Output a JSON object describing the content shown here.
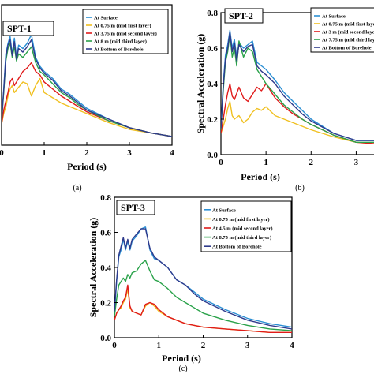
{
  "chart_data": [
    {
      "panel": "(a)",
      "type": "line",
      "title": "SPT-1",
      "xlabel": "Period (s)",
      "ylabel": "",
      "xlim": [
        0,
        4
      ],
      "ylim": [
        0,
        0.8
      ],
      "xticks": [
        "0",
        "1",
        "2",
        "3",
        "4"
      ],
      "yticks": [],
      "legend_position": "top-right",
      "series": [
        {
          "name": "At Surface",
          "color": "#2b8fd4",
          "x": [
            0,
            0.05,
            0.1,
            0.15,
            0.2,
            0.25,
            0.3,
            0.35,
            0.4,
            0.5,
            0.6,
            0.7,
            0.8,
            0.9,
            1,
            1.2,
            1.4,
            1.6,
            1.8,
            2,
            2.5,
            3,
            3.5,
            4
          ],
          "y": [
            0.14,
            0.32,
            0.52,
            0.58,
            0.62,
            0.52,
            0.61,
            0.5,
            0.57,
            0.55,
            0.58,
            0.63,
            0.5,
            0.45,
            0.42,
            0.38,
            0.32,
            0.29,
            0.25,
            0.21,
            0.15,
            0.1,
            0.07,
            0.05
          ]
        },
        {
          "name": "At 0.75 m (mid first layer)",
          "color": "#f0c020",
          "x": [
            0,
            0.05,
            0.1,
            0.15,
            0.2,
            0.25,
            0.3,
            0.4,
            0.5,
            0.6,
            0.7,
            0.8,
            0.9,
            1,
            1.2,
            1.4,
            1.6,
            1.8,
            2,
            2.5,
            3,
            3.5,
            4
          ],
          "y": [
            0.12,
            0.18,
            0.22,
            0.28,
            0.32,
            0.34,
            0.3,
            0.33,
            0.36,
            0.35,
            0.28,
            0.34,
            0.38,
            0.3,
            0.27,
            0.24,
            0.22,
            0.2,
            0.18,
            0.13,
            0.09,
            0.07,
            0.05
          ]
        },
        {
          "name": "At 3.75 m (mid second layer)",
          "color": "#e01b1b",
          "x": [
            0,
            0.05,
            0.1,
            0.15,
            0.2,
            0.25,
            0.3,
            0.4,
            0.5,
            0.6,
            0.7,
            0.8,
            0.9,
            1,
            1.2,
            1.4,
            1.6,
            1.8,
            2,
            2.5,
            3,
            3.5,
            4
          ],
          "y": [
            0.12,
            0.2,
            0.25,
            0.3,
            0.36,
            0.38,
            0.34,
            0.38,
            0.42,
            0.44,
            0.47,
            0.42,
            0.4,
            0.36,
            0.32,
            0.28,
            0.25,
            0.22,
            0.19,
            0.14,
            0.1,
            0.07,
            0.05
          ]
        },
        {
          "name": "At 8 m (mid third layer)",
          "color": "#2aa24a",
          "x": [
            0,
            0.05,
            0.1,
            0.15,
            0.2,
            0.25,
            0.3,
            0.35,
            0.4,
            0.5,
            0.6,
            0.7,
            0.8,
            0.9,
            1,
            1.2,
            1.4,
            1.6,
            1.8,
            2,
            2.5,
            3,
            3.5,
            4
          ],
          "y": [
            0.13,
            0.3,
            0.48,
            0.55,
            0.58,
            0.5,
            0.56,
            0.48,
            0.52,
            0.5,
            0.53,
            0.56,
            0.47,
            0.42,
            0.4,
            0.35,
            0.3,
            0.27,
            0.23,
            0.2,
            0.14,
            0.1,
            0.07,
            0.05
          ]
        },
        {
          "name": "At Bottom of Borehole",
          "color": "#2e3a8c",
          "x": [
            0,
            0.05,
            0.1,
            0.15,
            0.2,
            0.25,
            0.3,
            0.35,
            0.4,
            0.5,
            0.6,
            0.7,
            0.8,
            0.9,
            1,
            1.2,
            1.4,
            1.6,
            1.8,
            2,
            2.5,
            3,
            3.5,
            4
          ],
          "y": [
            0.14,
            0.31,
            0.5,
            0.57,
            0.6,
            0.51,
            0.59,
            0.49,
            0.55,
            0.53,
            0.56,
            0.6,
            0.49,
            0.44,
            0.41,
            0.37,
            0.31,
            0.28,
            0.24,
            0.2,
            0.15,
            0.1,
            0.07,
            0.05
          ]
        }
      ]
    },
    {
      "panel": "(b)",
      "type": "line",
      "title": "SPT-2",
      "xlabel": "Period (s)",
      "ylabel": "Spectral Acceleration (g)",
      "xlim": [
        0,
        3.5
      ],
      "ylim": [
        0,
        0.8
      ],
      "xticks": [
        "0",
        "1",
        "2",
        "3"
      ],
      "yticks": [
        "0.0",
        "0.2",
        "0.4",
        "0.6",
        "0.8"
      ],
      "legend_position": "top-right",
      "series": [
        {
          "name": "At Surface",
          "color": "#2b8fd4",
          "x": [
            0,
            0.05,
            0.1,
            0.15,
            0.2,
            0.25,
            0.3,
            0.35,
            0.4,
            0.5,
            0.6,
            0.7,
            0.8,
            0.9,
            1,
            1.2,
            1.4,
            1.6,
            1.8,
            2,
            2.5,
            3,
            3.5
          ],
          "y": [
            0.15,
            0.4,
            0.56,
            0.62,
            0.7,
            0.6,
            0.65,
            0.55,
            0.63,
            0.6,
            0.62,
            0.64,
            0.52,
            0.5,
            0.48,
            0.42,
            0.35,
            0.3,
            0.25,
            0.2,
            0.12,
            0.08,
            0.08
          ]
        },
        {
          "name": "At 0.75 m (mid first layer)",
          "color": "#f0c020",
          "x": [
            0,
            0.05,
            0.1,
            0.15,
            0.2,
            0.25,
            0.3,
            0.4,
            0.5,
            0.6,
            0.7,
            0.8,
            0.9,
            1,
            1.2,
            1.4,
            1.6,
            1.8,
            2,
            2.5,
            3,
            3.5
          ],
          "y": [
            0.12,
            0.16,
            0.2,
            0.26,
            0.3,
            0.22,
            0.2,
            0.22,
            0.18,
            0.2,
            0.24,
            0.26,
            0.25,
            0.27,
            0.22,
            0.2,
            0.18,
            0.16,
            0.14,
            0.1,
            0.07,
            0.06
          ]
        },
        {
          "name": "At 3 m (mid second layer)",
          "color": "#e01b1b",
          "x": [
            0,
            0.05,
            0.1,
            0.15,
            0.2,
            0.25,
            0.3,
            0.4,
            0.5,
            0.6,
            0.7,
            0.8,
            0.9,
            1,
            1.2,
            1.4,
            1.6,
            1.8,
            2,
            2.5,
            3,
            3.5
          ],
          "y": [
            0.12,
            0.2,
            0.28,
            0.35,
            0.4,
            0.33,
            0.31,
            0.38,
            0.32,
            0.3,
            0.34,
            0.38,
            0.36,
            0.4,
            0.32,
            0.27,
            0.23,
            0.2,
            0.17,
            0.11,
            0.07,
            0.06
          ]
        },
        {
          "name": "At 7.75 m (mid third layer)",
          "color": "#2aa24a",
          "x": [
            0,
            0.05,
            0.1,
            0.15,
            0.2,
            0.25,
            0.3,
            0.35,
            0.4,
            0.5,
            0.6,
            0.7,
            0.8,
            0.9,
            1,
            1.2,
            1.4,
            1.6,
            1.8,
            2,
            2.5,
            3,
            3.5
          ],
          "y": [
            0.14,
            0.36,
            0.52,
            0.58,
            0.68,
            0.55,
            0.6,
            0.5,
            0.64,
            0.55,
            0.6,
            0.58,
            0.48,
            0.44,
            0.4,
            0.34,
            0.28,
            0.24,
            0.2,
            0.17,
            0.11,
            0.07,
            0.07
          ]
        },
        {
          "name": "At Bottom of Borehole",
          "color": "#2e3a8c",
          "x": [
            0,
            0.05,
            0.1,
            0.15,
            0.2,
            0.25,
            0.3,
            0.35,
            0.4,
            0.5,
            0.6,
            0.7,
            0.8,
            0.9,
            1,
            1.2,
            1.4,
            1.6,
            1.8,
            2,
            2.5,
            3,
            3.5
          ],
          "y": [
            0.15,
            0.38,
            0.54,
            0.6,
            0.69,
            0.58,
            0.63,
            0.53,
            0.62,
            0.58,
            0.61,
            0.62,
            0.5,
            0.47,
            0.45,
            0.4,
            0.33,
            0.28,
            0.23,
            0.19,
            0.12,
            0.08,
            0.08
          ]
        }
      ]
    },
    {
      "panel": "(c)",
      "type": "line",
      "title": "SPT-3",
      "xlabel": "Period (s)",
      "ylabel": "Spectral Acceleration (g)",
      "xlim": [
        0,
        4
      ],
      "ylim": [
        0,
        0.8
      ],
      "xticks": [
        "0",
        "1",
        "2",
        "3",
        "4"
      ],
      "yticks": [
        "0.0",
        "0.2",
        "0.4",
        "0.6",
        "0.8"
      ],
      "legend_position": "top-right",
      "series": [
        {
          "name": "At Surface",
          "color": "#2b8fd4",
          "x": [
            0,
            0.05,
            0.1,
            0.15,
            0.2,
            0.25,
            0.3,
            0.35,
            0.4,
            0.5,
            0.6,
            0.7,
            0.8,
            0.9,
            1,
            1.2,
            1.4,
            1.6,
            1.8,
            2,
            2.5,
            3,
            3.5,
            4
          ],
          "y": [
            0.14,
            0.32,
            0.46,
            0.5,
            0.56,
            0.5,
            0.55,
            0.5,
            0.55,
            0.58,
            0.62,
            0.63,
            0.5,
            0.45,
            0.44,
            0.4,
            0.33,
            0.3,
            0.26,
            0.22,
            0.16,
            0.11,
            0.08,
            0.06
          ]
        },
        {
          "name": "At 0.75 m (mid first layer)",
          "color": "#f0c020",
          "x": [
            0,
            0.05,
            0.1,
            0.15,
            0.2,
            0.25,
            0.3,
            0.35,
            0.4,
            0.5,
            0.6,
            0.7,
            0.8,
            0.9,
            1,
            1.2,
            1.4,
            1.6,
            1.8,
            2,
            2.5,
            3,
            3.5,
            4
          ],
          "y": [
            0.1,
            0.14,
            0.16,
            0.17,
            0.2,
            0.22,
            0.28,
            0.17,
            0.15,
            0.14,
            0.13,
            0.18,
            0.2,
            0.18,
            0.15,
            0.12,
            0.1,
            0.08,
            0.07,
            0.06,
            0.05,
            0.04,
            0.03,
            0.03
          ]
        },
        {
          "name": "At 4.5 m (mid second layer)",
          "color": "#e01b1b",
          "x": [
            0,
            0.05,
            0.1,
            0.15,
            0.2,
            0.25,
            0.3,
            0.35,
            0.4,
            0.5,
            0.6,
            0.7,
            0.8,
            0.9,
            1,
            1.2,
            1.4,
            1.6,
            1.8,
            2,
            2.5,
            3,
            3.5,
            4
          ],
          "y": [
            0.1,
            0.14,
            0.16,
            0.18,
            0.21,
            0.23,
            0.3,
            0.18,
            0.15,
            0.14,
            0.13,
            0.19,
            0.2,
            0.19,
            0.16,
            0.12,
            0.1,
            0.08,
            0.07,
            0.06,
            0.05,
            0.04,
            0.03,
            0.03
          ]
        },
        {
          "name": "At 8.75 m (mid third layer)",
          "color": "#2aa24a",
          "x": [
            0,
            0.05,
            0.1,
            0.15,
            0.2,
            0.25,
            0.3,
            0.35,
            0.4,
            0.5,
            0.6,
            0.7,
            0.8,
            0.9,
            1,
            1.2,
            1.4,
            1.6,
            1.8,
            2,
            2.5,
            3,
            3.5,
            4
          ],
          "y": [
            0.12,
            0.22,
            0.3,
            0.32,
            0.34,
            0.32,
            0.36,
            0.34,
            0.37,
            0.38,
            0.42,
            0.44,
            0.38,
            0.33,
            0.32,
            0.28,
            0.23,
            0.2,
            0.17,
            0.14,
            0.1,
            0.07,
            0.05,
            0.04
          ]
        },
        {
          "name": "At Bottom of Borehole",
          "color": "#2e3a8c",
          "x": [
            0,
            0.05,
            0.1,
            0.15,
            0.2,
            0.25,
            0.3,
            0.35,
            0.4,
            0.5,
            0.6,
            0.7,
            0.8,
            0.9,
            1,
            1.2,
            1.4,
            1.6,
            1.8,
            2,
            2.5,
            3,
            3.5,
            4
          ],
          "y": [
            0.15,
            0.33,
            0.47,
            0.52,
            0.57,
            0.51,
            0.56,
            0.51,
            0.56,
            0.59,
            0.62,
            0.62,
            0.51,
            0.46,
            0.44,
            0.4,
            0.33,
            0.3,
            0.25,
            0.21,
            0.15,
            0.1,
            0.07,
            0.05
          ]
        }
      ]
    }
  ]
}
